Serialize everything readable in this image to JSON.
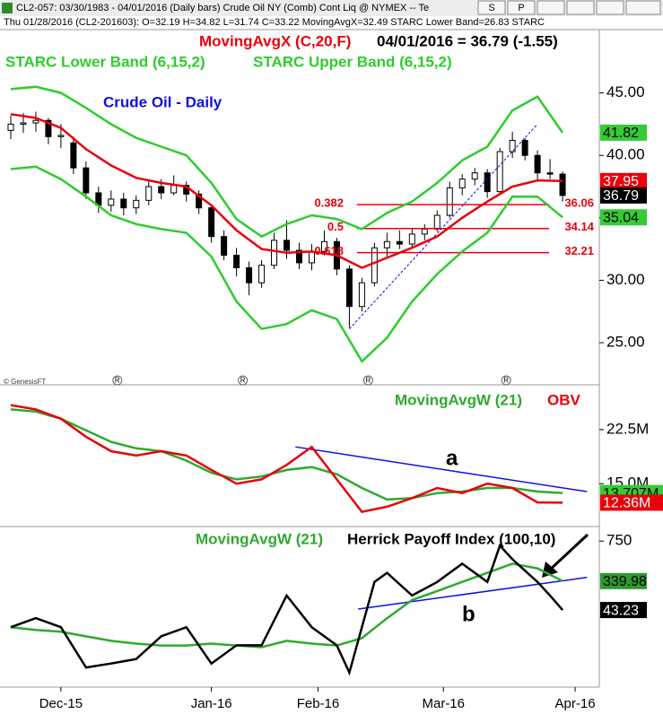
{
  "header": {
    "window_title": "CL2-057: 03/30/1983 - 04/01/2016 (Daily bars)   Crude Oil NY (Comb) Cont Liq @ NYMEX  -- Te",
    "buttons": [
      "S",
      "P"
    ],
    "info_line": "Thu   01/28/2016 (CL2-201603):  O=32.19  H=34.82  L=31.74  C=33.22   MovingAvgX=32.49   STARC Lower Band=26.83   STARC",
    "credit": "© GenesisFT"
  },
  "chart_data": [
    {
      "type": "candlestick",
      "title": "Crude Oil - Daily",
      "last_label": "04/01/2016 = 36.79 (-1.55)",
      "xlim": [
        0,
        94
      ],
      "ylim": [
        21.7,
        50
      ],
      "yticks": [
        {
          "value": 45,
          "label": "45.00"
        },
        {
          "value": 40,
          "label": "40.00"
        },
        {
          "value": 35,
          "label": "35.00"
        },
        {
          "value": 30,
          "label": "30.00"
        },
        {
          "value": 25,
          "label": "25.00"
        }
      ],
      "candles": {
        "x": [
          1,
          3,
          5,
          7,
          9,
          11,
          13,
          15,
          17,
          19,
          21,
          23,
          25,
          27,
          29,
          31,
          33,
          35,
          37,
          39,
          41,
          43,
          45,
          47,
          49,
          51,
          53,
          55,
          57,
          59,
          61,
          63,
          65,
          67,
          69,
          71,
          73,
          75,
          77,
          79,
          81,
          83,
          85,
          87,
          89
        ],
        "open": [
          42.0,
          42.5,
          42.6,
          42.8,
          41.5,
          41.0,
          39.0,
          37.0,
          36.0,
          36.5,
          35.8,
          36.4,
          37.5,
          37.0,
          37.6,
          36.9,
          35.8,
          33.5,
          32.0,
          31.0,
          29.8,
          31.2,
          33.2,
          32.4,
          31.4,
          32.3,
          33.1,
          30.9,
          27.9,
          29.8,
          32.6,
          33.1,
          32.9,
          33.7,
          34.1,
          35.2,
          37.4,
          38.1,
          38.6,
          37.1,
          40.3,
          41.2,
          40.0,
          38.6,
          38.5
        ],
        "high": [
          43.2,
          43.4,
          43.5,
          43.0,
          42.5,
          41.5,
          39.5,
          37.5,
          37.2,
          37.0,
          36.8,
          38.0,
          38.1,
          38.4,
          37.9,
          37.2,
          36.0,
          34.0,
          32.6,
          31.5,
          31.6,
          33.8,
          34.8,
          33.0,
          32.9,
          34.0,
          33.4,
          31.2,
          30.2,
          33.0,
          33.8,
          34.0,
          34.2,
          34.5,
          35.6,
          37.9,
          38.5,
          39.0,
          38.9,
          40.6,
          41.9,
          41.4,
          40.4,
          39.7,
          38.7
        ],
        "low": [
          41.3,
          41.8,
          41.9,
          40.9,
          40.6,
          38.5,
          36.5,
          35.4,
          35.5,
          35.2,
          35.3,
          36.0,
          36.5,
          36.8,
          36.3,
          35.3,
          33.0,
          31.6,
          30.3,
          28.8,
          29.4,
          30.9,
          31.7,
          30.9,
          30.8,
          32.0,
          30.4,
          26.2,
          27.5,
          29.5,
          31.9,
          32.5,
          32.6,
          33.2,
          33.9,
          35.0,
          36.8,
          37.6,
          36.6,
          36.9,
          39.8,
          39.6,
          38.0,
          38.1,
          36.3
        ],
        "close": [
          42.5,
          42.6,
          42.8,
          41.5,
          41.6,
          39.0,
          37.0,
          36.0,
          36.5,
          35.8,
          36.4,
          37.5,
          37.0,
          37.6,
          36.9,
          35.8,
          33.5,
          32.0,
          31.0,
          29.8,
          31.2,
          33.2,
          32.4,
          31.4,
          32.3,
          33.1,
          30.9,
          27.9,
          29.8,
          32.6,
          33.1,
          32.9,
          33.7,
          34.1,
          35.2,
          37.4,
          38.1,
          38.6,
          37.1,
          40.3,
          41.2,
          40.0,
          38.6,
          38.5,
          36.79
        ]
      },
      "series": [
        {
          "name": "MovingAvgX (C,20,F)",
          "color": "#e8000b",
          "x": [
            1,
            5,
            9,
            13,
            17,
            21,
            25,
            29,
            33,
            37,
            41,
            45,
            49,
            53,
            57,
            61,
            65,
            69,
            73,
            77,
            81,
            85,
            89
          ],
          "values": [
            43.3,
            43.0,
            42.2,
            40.5,
            39.2,
            38.2,
            37.8,
            37.5,
            36.0,
            34.0,
            32.5,
            32.2,
            32.3,
            32.0,
            31.0,
            31.8,
            32.6,
            33.5,
            35.0,
            36.3,
            37.5,
            38.0,
            37.95
          ]
        },
        {
          "name": "STARC Lower Band (6,15,2)",
          "color": "#2ecc2e",
          "x": [
            1,
            5,
            9,
            13,
            17,
            21,
            25,
            29,
            33,
            37,
            41,
            45,
            49,
            53,
            57,
            61,
            65,
            69,
            73,
            77,
            81,
            85,
            89
          ],
          "values": [
            38.9,
            39.1,
            38.1,
            36.7,
            35.2,
            34.5,
            34.1,
            33.8,
            31.9,
            28.3,
            26.1,
            26.5,
            27.6,
            26.9,
            23.5,
            25.4,
            28.3,
            30.5,
            32.3,
            33.8,
            36.7,
            36.7,
            35.04
          ]
        },
        {
          "name": "STARC Upper Band (6,15,2)",
          "color": "#2ecc2e",
          "x": [
            1,
            5,
            9,
            13,
            17,
            21,
            25,
            29,
            33,
            37,
            41,
            45,
            49,
            53,
            57,
            61,
            65,
            69,
            73,
            77,
            81,
            85,
            89
          ],
          "values": [
            45.3,
            45.5,
            45.0,
            43.8,
            42.5,
            41.4,
            40.7,
            40.0,
            37.8,
            34.9,
            33.5,
            34.5,
            35.2,
            34.9,
            34.1,
            35.4,
            36.3,
            37.8,
            39.6,
            40.7,
            43.6,
            44.7,
            41.82
          ]
        }
      ],
      "fib_levels": [
        {
          "label": "0.382",
          "value": 36.06
        },
        {
          "label": "0.5",
          "value": 34.14
        },
        {
          "label": "0.618",
          "value": 32.21
        }
      ],
      "trendline": {
        "x": [
          55,
          85
        ],
        "y": [
          26.1,
          42.5
        ]
      },
      "price_markers": [
        {
          "value": 41.82,
          "color": "#33cc33"
        },
        {
          "value": 37.95,
          "color": "#e8000b"
        },
        {
          "value": 36.79,
          "color": "#000000"
        },
        {
          "value": 35.04,
          "color": "#33cc33"
        }
      ],
      "event_markers": {
        "label": "R",
        "x": [
          18,
          38,
          58,
          80
        ]
      }
    },
    {
      "type": "line",
      "annotation": "a",
      "xlim": [
        0,
        94
      ],
      "ylim": [
        9180000,
        28580000
      ],
      "yticks": [
        {
          "value": 22500000,
          "label": "22.5M"
        },
        {
          "value": 15000000,
          "label": "15.0M"
        }
      ],
      "series": [
        {
          "name": "MovingAvgW (21)",
          "color": "#2eaa2e",
          "x": [
            1,
            5,
            9,
            13,
            17,
            21,
            25,
            29,
            33,
            37,
            41,
            45,
            49,
            53,
            57,
            61,
            65,
            69,
            73,
            77,
            81,
            85,
            89
          ],
          "values": [
            25300000,
            25000000,
            24000000,
            22400000,
            20800000,
            19900000,
            19500000,
            18200000,
            16500000,
            15600000,
            16000000,
            16900000,
            17300000,
            16300000,
            14400000,
            12800000,
            13000000,
            13700000,
            13900000,
            14400000,
            14400000,
            13900000,
            13707000
          ]
        },
        {
          "name": "OBV",
          "color": "#e8000b",
          "x": [
            1,
            5,
            9,
            13,
            17,
            21,
            25,
            29,
            33,
            37,
            41,
            45,
            49,
            53,
            57,
            61,
            65,
            69,
            73,
            77,
            81,
            85,
            89
          ],
          "values": [
            25900000,
            25300000,
            24000000,
            21500000,
            19500000,
            18900000,
            19500000,
            18900000,
            16900000,
            15000000,
            15600000,
            17600000,
            20100000,
            15600000,
            11100000,
            11800000,
            13000000,
            14400000,
            13700000,
            15000000,
            14400000,
            12400000,
            12360000
          ]
        }
      ],
      "trendline": {
        "x": [
          46.4,
          92.9
        ],
        "y": [
          20100000,
          13900000
        ]
      },
      "price_markers": [
        {
          "value": 13707000,
          "label": "13.707M",
          "color": "#33cc33"
        },
        {
          "value": 12360000,
          "label": "12.36M",
          "color": "#e8000b"
        }
      ]
    },
    {
      "type": "line",
      "annotation": "b",
      "xlim": [
        0,
        94
      ],
      "ylim": [
        -738,
        890
      ],
      "yticks": [
        750
      ],
      "xticks": [
        {
          "value": 9,
          "label": "Dec-15"
        },
        {
          "value": 33,
          "label": "Jan-16"
        },
        {
          "value": 50,
          "label": "Feb-16"
        },
        {
          "value": 70,
          "label": "Mar-16"
        },
        {
          "value": 91,
          "label": "Apr-16"
        }
      ],
      "series": [
        {
          "name": "MovingAvgW (21)",
          "color": "#2eaa2e",
          "x": [
            1,
            5,
            9,
            13,
            17,
            21,
            25,
            29,
            33,
            37,
            41,
            45,
            49,
            53,
            57,
            61,
            65,
            69,
            73,
            77,
            81,
            85,
            89
          ],
          "values": [
            -133,
            -161,
            -180,
            -227,
            -273,
            -301,
            -320,
            -320,
            -301,
            -320,
            -338,
            -273,
            -301,
            -320,
            -245,
            -41,
            146,
            238,
            332,
            425,
            518,
            471,
            339.98
          ]
        },
        {
          "name": "Herrick Payoff Index (100,10)",
          "color": "#000000",
          "x": [
            1,
            5,
            9,
            13,
            17,
            21,
            25,
            29,
            33,
            37,
            41,
            45,
            49,
            53,
            55,
            57,
            59,
            61,
            65,
            69,
            73,
            77,
            79,
            81,
            85,
            87,
            89
          ],
          "values": [
            -133,
            -40,
            -133,
            -546,
            -505,
            -459,
            -226,
            -133,
            -505,
            -319,
            -319,
            192,
            -133,
            -319,
            -598,
            -133,
            331,
            425,
            192,
            331,
            518,
            331,
            703,
            564,
            331,
            192,
            43.23
          ]
        }
      ],
      "trendline": {
        "x": [
          56.4,
          92.9
        ],
        "y": [
          53,
          378
        ]
      },
      "price_markers": [
        {
          "value": 339.98,
          "color": "#2e9a2e"
        },
        {
          "value": 43.23,
          "color": "#000000"
        }
      ]
    }
  ]
}
